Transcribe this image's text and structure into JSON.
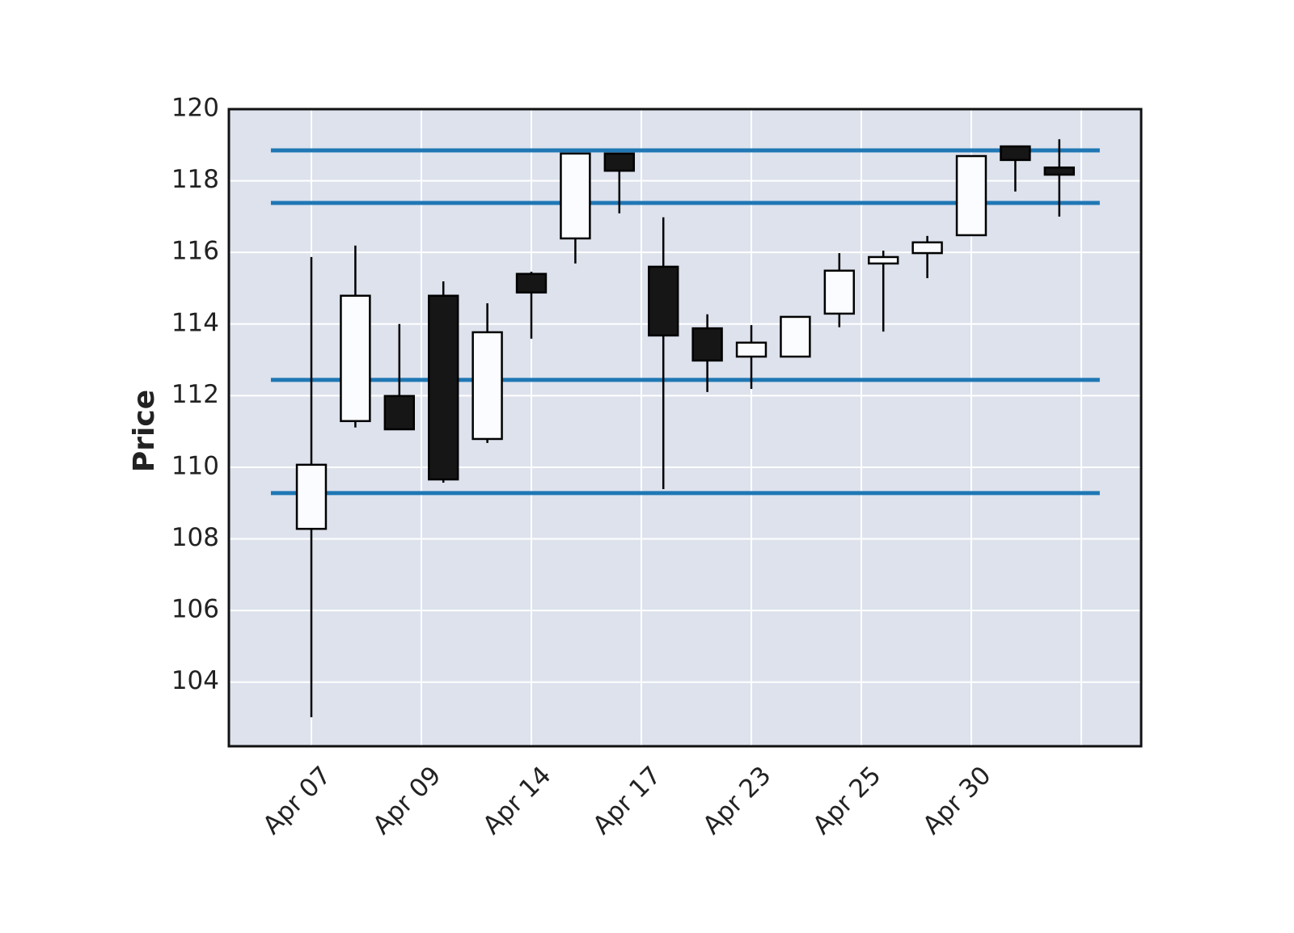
{
  "chart_data": {
    "type": "candlestick",
    "ylabel": "Price",
    "open": [
      108.28,
      111.29,
      111.99,
      114.79,
      110.79,
      115.4,
      116.39,
      118.76,
      115.6,
      113.88,
      113.09,
      113.09,
      114.29,
      115.69,
      115.98,
      116.48,
      118.96,
      118.37
    ],
    "high": [
      115.87,
      116.19,
      114.0,
      115.19,
      114.58,
      115.46,
      118.76,
      118.76,
      116.98,
      114.27,
      113.97,
      114.2,
      115.98,
      116.05,
      116.46,
      118.69,
      118.96,
      119.16
    ],
    "low": [
      103.02,
      111.11,
      111.06,
      109.57,
      110.68,
      113.59,
      115.69,
      117.09,
      109.39,
      112.1,
      112.19,
      113.09,
      113.91,
      113.79,
      115.28,
      116.48,
      117.7,
      117.0
    ],
    "close": [
      110.07,
      114.79,
      111.06,
      109.66,
      113.77,
      114.88,
      118.76,
      118.28,
      113.68,
      112.98,
      113.48,
      114.2,
      115.49,
      115.87,
      116.28,
      118.69,
      118.58,
      118.17
    ],
    "up_color": "#fafcff",
    "down_color": "#161616",
    "hlines": {
      "values": [
        118.85,
        117.38,
        112.44,
        109.28
      ],
      "color": "#1f77b4"
    },
    "xlim": [
      -1.875,
      18.86
    ],
    "xticks": [
      {
        "value": 0,
        "label": "Apr 07"
      },
      {
        "value": 2.5,
        "label": "Apr 09"
      },
      {
        "value": 5,
        "label": "Apr 14"
      },
      {
        "value": 7.5,
        "label": "Apr 17"
      },
      {
        "value": 10,
        "label": "Apr 23"
      },
      {
        "value": 12.5,
        "label": "Apr 25"
      },
      {
        "value": 15,
        "label": "Apr 30"
      },
      {
        "value": 17.5,
        "label": null
      }
    ],
    "ylim": [
      102.21,
      120
    ],
    "yticks": [
      104,
      106,
      108,
      110,
      112,
      114,
      116,
      118,
      120
    ],
    "grid": true,
    "background": "#dde2ed"
  }
}
